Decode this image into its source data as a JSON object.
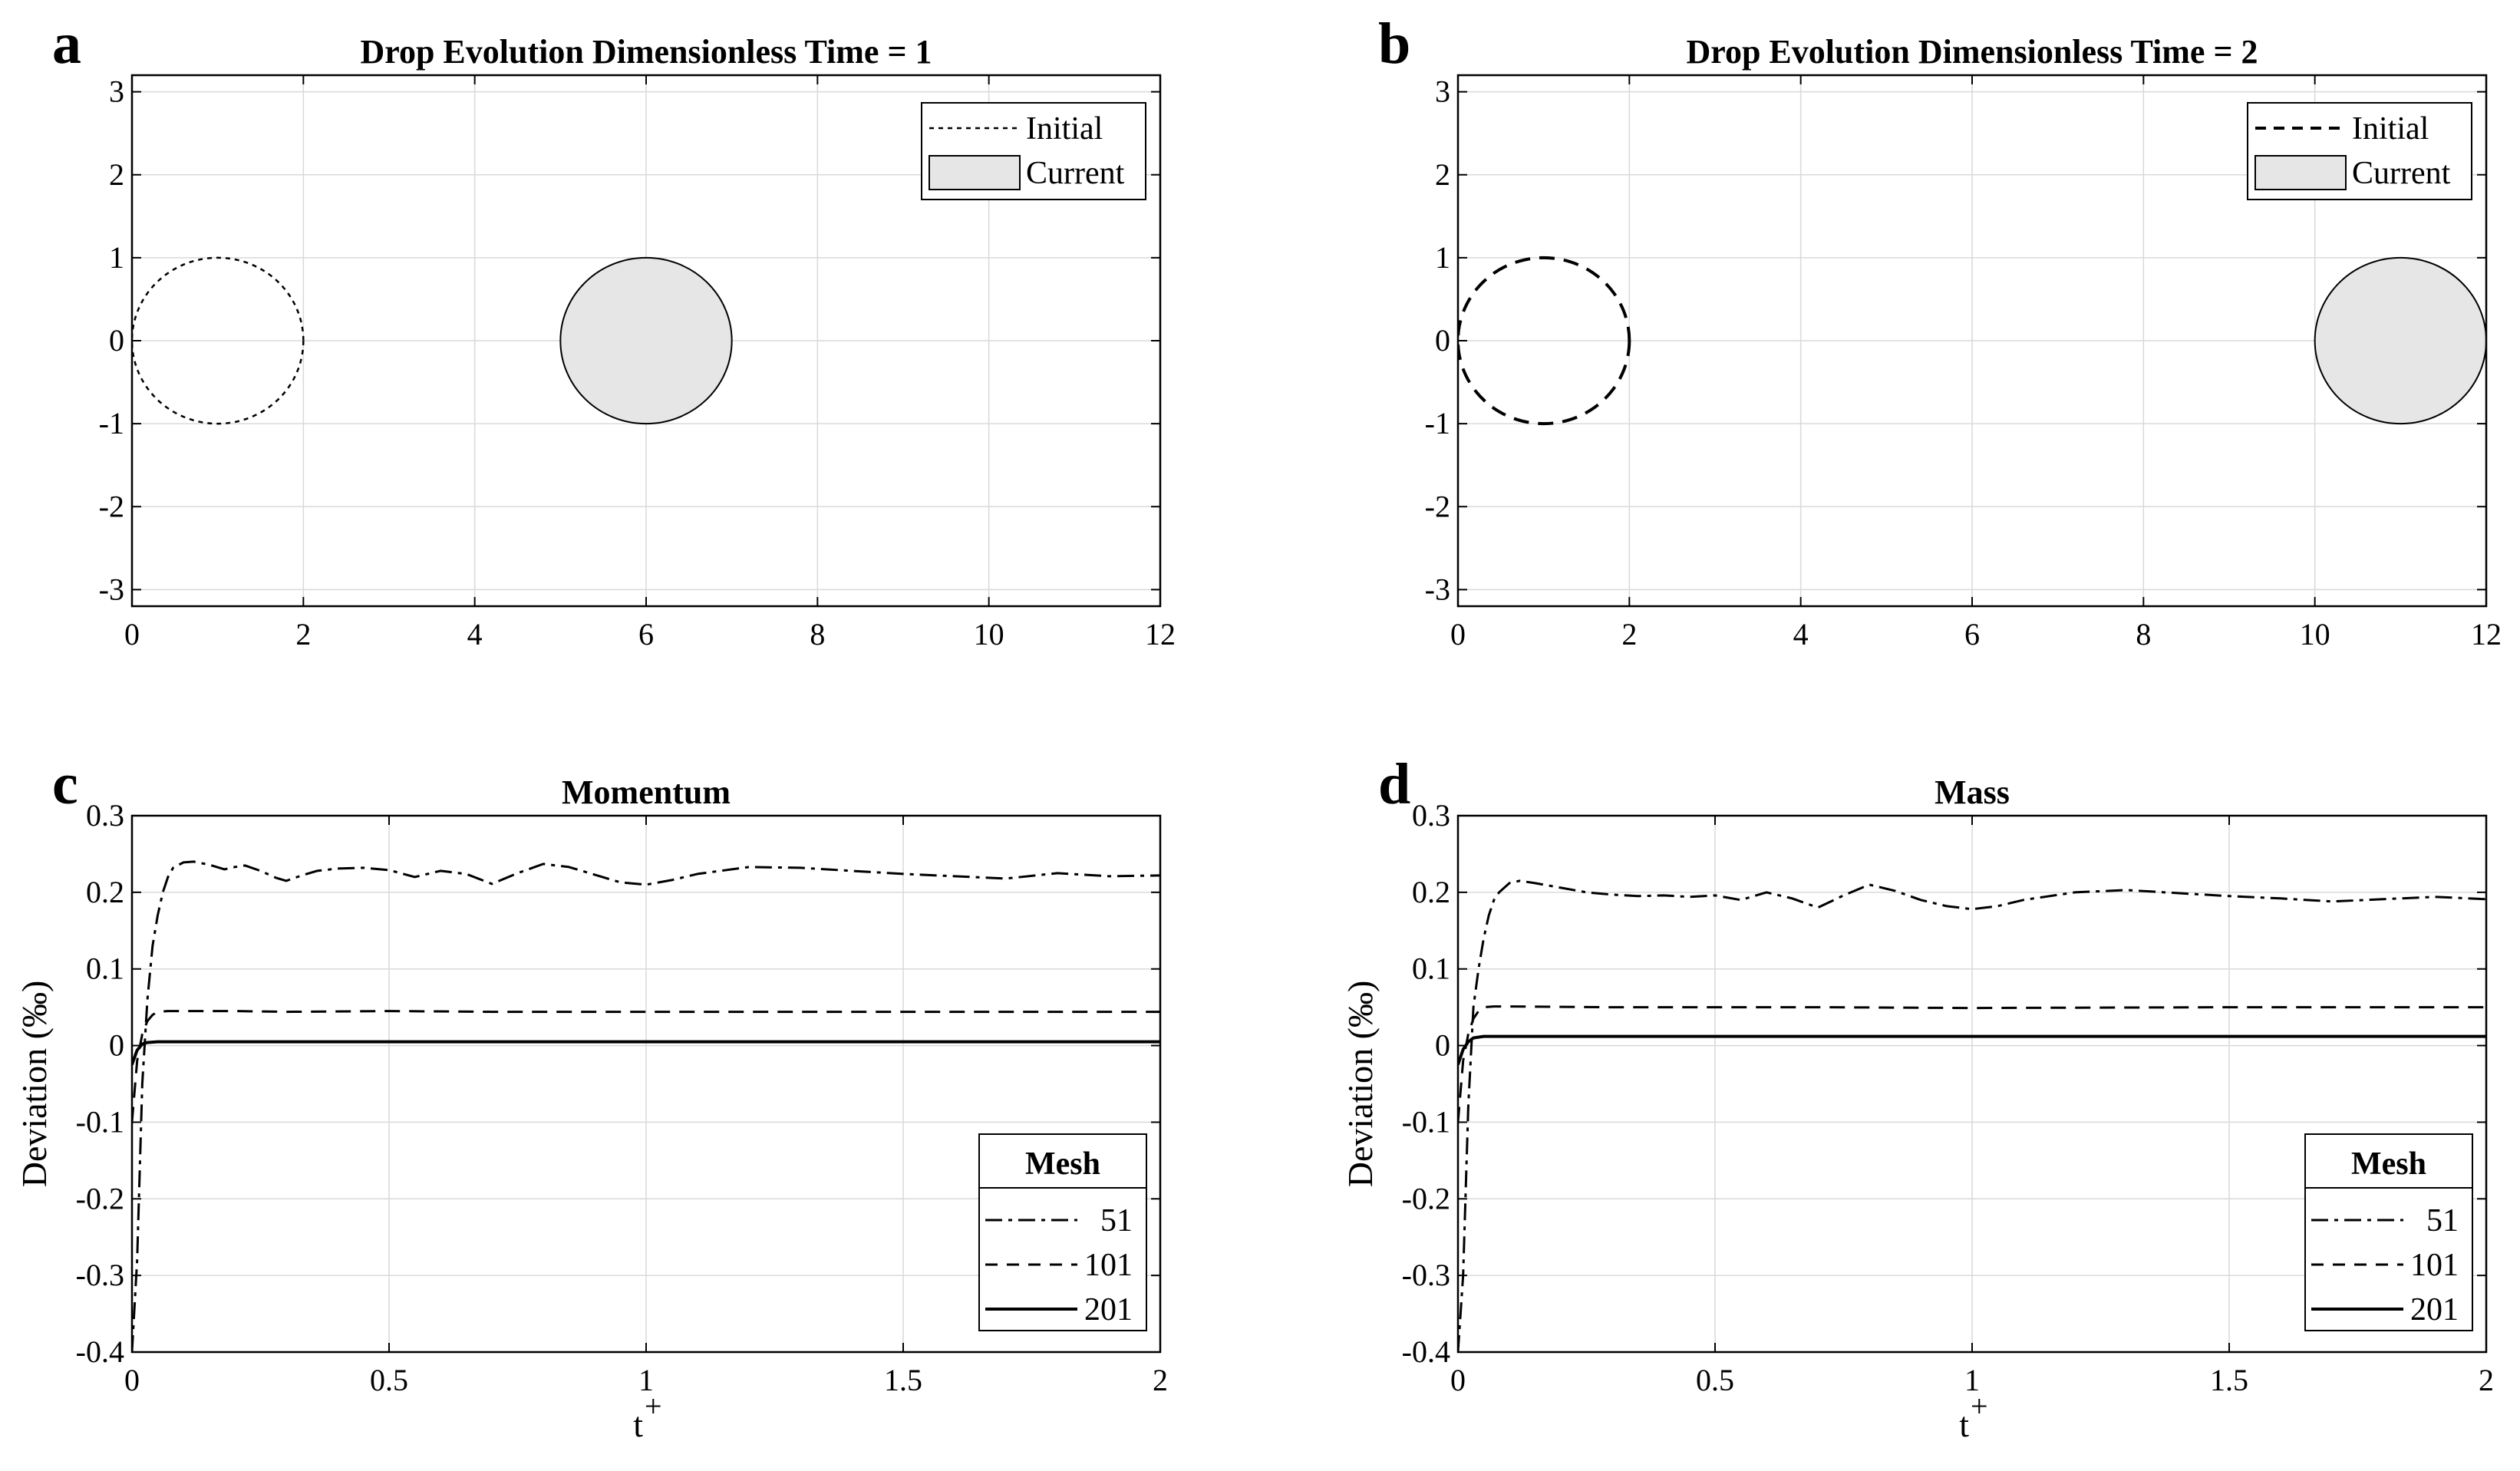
{
  "figure": {
    "panels": [
      {
        "letter": "a",
        "title": "Drop Evolution Dimensionless Time = 1"
      },
      {
        "letter": "b",
        "title": "Drop Evolution Dimensionless Time = 2"
      },
      {
        "letter": "c",
        "title": "Momentum"
      },
      {
        "letter": "d",
        "title": "Mass"
      }
    ]
  },
  "chart_data": [
    {
      "panel": "a",
      "type": "scatter",
      "title": "Drop Evolution Dimensionless Time = 1",
      "xlabel": "",
      "ylabel": "",
      "xlim": [
        0,
        12
      ],
      "ylim": [
        -3.2,
        3.2
      ],
      "xticks": [
        0,
        2,
        4,
        6,
        8,
        10,
        12
      ],
      "yticks": [
        -3,
        -2,
        -1,
        0,
        1,
        2,
        3
      ],
      "grid": true,
      "legend": {
        "placement": "top-right",
        "entries": [
          "Initial",
          "Current"
        ]
      },
      "shapes": [
        {
          "name": "Initial",
          "kind": "circle",
          "center": [
            1,
            0
          ],
          "radius": 1,
          "style": "dotted"
        },
        {
          "name": "Current",
          "kind": "circle",
          "center": [
            6,
            0
          ],
          "radius": 1,
          "style": "filled",
          "fill": "#e6e6e6"
        }
      ]
    },
    {
      "panel": "b",
      "type": "scatter",
      "title": "Drop Evolution Dimensionless Time = 2",
      "xlabel": "",
      "ylabel": "",
      "xlim": [
        0,
        12
      ],
      "ylim": [
        -3.2,
        3.2
      ],
      "xticks": [
        0,
        2,
        4,
        6,
        8,
        10,
        12
      ],
      "yticks": [
        -3,
        -2,
        -1,
        0,
        1,
        2,
        3
      ],
      "grid": true,
      "legend": {
        "placement": "top-right",
        "entries": [
          "Initial",
          "Current"
        ]
      },
      "shapes": [
        {
          "name": "Initial",
          "kind": "circle",
          "center": [
            1,
            0
          ],
          "radius": 1,
          "style": "dashed"
        },
        {
          "name": "Current",
          "kind": "circle",
          "center": [
            11,
            0
          ],
          "radius": 1,
          "style": "filled",
          "fill": "#e6e6e6"
        }
      ]
    },
    {
      "panel": "c",
      "type": "line",
      "title": "Momentum",
      "xlabel": "t",
      "xlabel_sup": "+",
      "ylabel": "Deviation (‰)",
      "xlim": [
        0,
        2
      ],
      "ylim": [
        -0.4,
        0.3
      ],
      "xticks": [
        0,
        0.5,
        1,
        1.5,
        2
      ],
      "yticks": [
        -0.4,
        -0.3,
        -0.2,
        -0.1,
        0,
        0.1,
        0.2,
        0.3
      ],
      "grid": true,
      "legend": {
        "placement": "bottom-right",
        "title": "Mesh"
      },
      "series": [
        {
          "name": "51",
          "style": "dashdot",
          "x": [
            0,
            0.01,
            0.02,
            0.03,
            0.04,
            0.05,
            0.06,
            0.07,
            0.08,
            0.1,
            0.12,
            0.15,
            0.18,
            0.2,
            0.22,
            0.25,
            0.28,
            0.3,
            0.33,
            0.36,
            0.4,
            0.45,
            0.5,
            0.55,
            0.6,
            0.65,
            0.7,
            0.75,
            0.8,
            0.85,
            0.9,
            0.95,
            1,
            1.05,
            1.1,
            1.2,
            1.3,
            1.4,
            1.5,
            1.6,
            1.7,
            1.8,
            1.9,
            2
          ],
          "y": [
            -0.4,
            -0.28,
            -0.05,
            0.06,
            0.13,
            0.17,
            0.2,
            0.22,
            0.232,
            0.239,
            0.24,
            0.236,
            0.23,
            0.233,
            0.235,
            0.228,
            0.219,
            0.215,
            0.222,
            0.228,
            0.231,
            0.232,
            0.229,
            0.22,
            0.228,
            0.224,
            0.211,
            0.225,
            0.237,
            0.233,
            0.223,
            0.213,
            0.21,
            0.216,
            0.224,
            0.233,
            0.232,
            0.228,
            0.224,
            0.221,
            0.218,
            0.225,
            0.221,
            0.222
          ]
        },
        {
          "name": "101",
          "style": "dashed",
          "x": [
            0,
            0.01,
            0.02,
            0.03,
            0.04,
            0.05,
            0.07,
            0.1,
            0.2,
            0.3,
            0.5,
            0.7,
            1,
            1.5,
            2
          ],
          "y": [
            -0.1,
            -0.02,
            0.015,
            0.032,
            0.04,
            0.044,
            0.045,
            0.045,
            0.045,
            0.044,
            0.045,
            0.044,
            0.044,
            0.044,
            0.044
          ]
        },
        {
          "name": "201",
          "style": "solid",
          "x": [
            0,
            0.01,
            0.02,
            0.03,
            0.05,
            0.1,
            0.5,
            1,
            1.5,
            2
          ],
          "y": [
            -0.025,
            -0.006,
            0.002,
            0.004,
            0.005,
            0.005,
            0.005,
            0.005,
            0.005,
            0.005
          ]
        }
      ]
    },
    {
      "panel": "d",
      "type": "line",
      "title": "Mass",
      "xlabel": "t",
      "xlabel_sup": "+",
      "ylabel": "Deviation (‰)",
      "xlim": [
        0,
        2
      ],
      "ylim": [
        -0.4,
        0.3
      ],
      "xticks": [
        0,
        0.5,
        1,
        1.5,
        2
      ],
      "yticks": [
        -0.4,
        -0.3,
        -0.2,
        -0.1,
        0,
        0.1,
        0.2,
        0.3
      ],
      "grid": true,
      "legend": {
        "placement": "bottom-right",
        "title": "Mesh"
      },
      "series": [
        {
          "name": "51",
          "style": "dashdot",
          "x": [
            0,
            0.01,
            0.02,
            0.03,
            0.04,
            0.05,
            0.06,
            0.07,
            0.08,
            0.1,
            0.12,
            0.15,
            0.2,
            0.25,
            0.3,
            0.35,
            0.4,
            0.45,
            0.5,
            0.55,
            0.6,
            0.65,
            0.7,
            0.75,
            0.8,
            0.85,
            0.9,
            0.95,
            1,
            1.05,
            1.1,
            1.2,
            1.3,
            1.4,
            1.5,
            1.6,
            1.7,
            1.8,
            1.9,
            2
          ],
          "y": [
            -0.4,
            -0.3,
            -0.08,
            0.05,
            0.1,
            0.14,
            0.17,
            0.19,
            0.2,
            0.212,
            0.215,
            0.212,
            0.206,
            0.2,
            0.197,
            0.195,
            0.196,
            0.194,
            0.196,
            0.19,
            0.2,
            0.192,
            0.18,
            0.196,
            0.21,
            0.202,
            0.19,
            0.182,
            0.178,
            0.182,
            0.19,
            0.2,
            0.203,
            0.199,
            0.195,
            0.192,
            0.188,
            0.191,
            0.194,
            0.191
          ]
        },
        {
          "name": "101",
          "style": "dashed",
          "x": [
            0,
            0.01,
            0.02,
            0.03,
            0.04,
            0.05,
            0.07,
            0.1,
            0.3,
            0.5,
            0.7,
            1,
            1.5,
            2
          ],
          "y": [
            -0.1,
            -0.02,
            0.015,
            0.035,
            0.045,
            0.05,
            0.051,
            0.051,
            0.05,
            0.05,
            0.05,
            0.049,
            0.05,
            0.05
          ]
        },
        {
          "name": "201",
          "style": "solid",
          "x": [
            0,
            0.01,
            0.02,
            0.03,
            0.05,
            0.1,
            0.5,
            1,
            1.5,
            2
          ],
          "y": [
            -0.025,
            -0.005,
            0.005,
            0.01,
            0.012,
            0.012,
            0.012,
            0.012,
            0.012,
            0.012
          ]
        }
      ]
    }
  ]
}
